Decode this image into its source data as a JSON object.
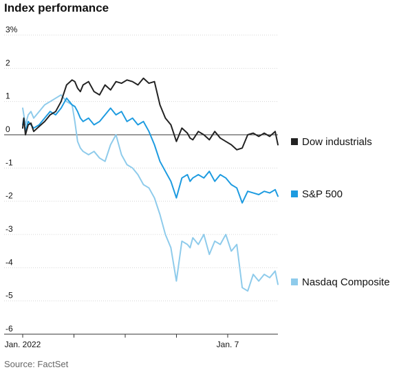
{
  "chart_data": {
    "type": "line",
    "title": "Index performance",
    "source": "Source: FactSet",
    "ylim": [
      -6,
      3
    ],
    "y_ticks": [
      {
        "value": 3,
        "label": "3%"
      },
      {
        "value": 2,
        "label": "2"
      },
      {
        "value": 1,
        "label": "1"
      },
      {
        "value": 0,
        "label": "0"
      },
      {
        "value": -1,
        "label": "-1"
      },
      {
        "value": -2,
        "label": "-2"
      },
      {
        "value": -3,
        "label": "-3"
      },
      {
        "value": -4,
        "label": "-4"
      },
      {
        "value": -5,
        "label": "-5"
      },
      {
        "value": -6,
        "label": "-6"
      }
    ],
    "x_ticks": [
      {
        "value": 0,
        "label": "Jan. 2022"
      },
      {
        "value": 1,
        "label": ""
      },
      {
        "value": 2,
        "label": ""
      },
      {
        "value": 3,
        "label": ""
      },
      {
        "value": 4,
        "label": "Jan. 7"
      }
    ],
    "grid": true,
    "legend": "right",
    "series": [
      {
        "name": "Dow industrials",
        "color": "#222222",
        "x": [
          0,
          0.02,
          0.05,
          0.1,
          0.15,
          0.2,
          0.3,
          0.4,
          0.5,
          0.6,
          0.7,
          0.8,
          0.9,
          0.95,
          1.0,
          1.05,
          1.1,
          1.2,
          1.3,
          1.4,
          1.5,
          1.6,
          1.7,
          1.8,
          1.9,
          2.0,
          2.1,
          2.2,
          2.3,
          2.4,
          2.5,
          2.6,
          2.7,
          2.8,
          2.9,
          3.0,
          3.05,
          3.1,
          3.2,
          3.3,
          3.4,
          3.5,
          3.6,
          3.7,
          3.8,
          3.9,
          4.0,
          4.1,
          4.2,
          4.3,
          4.4,
          4.5,
          4.6,
          4.65
        ],
        "values": [
          0.2,
          0.5,
          0.0,
          0.3,
          0.35,
          0.1,
          0.25,
          0.4,
          0.6,
          0.7,
          1.0,
          1.5,
          1.65,
          1.6,
          1.4,
          1.3,
          1.5,
          1.6,
          1.3,
          1.2,
          1.5,
          1.35,
          1.6,
          1.55,
          1.65,
          1.6,
          1.5,
          1.7,
          1.55,
          1.6,
          0.9,
          0.5,
          0.3,
          -0.2,
          0.2,
          0.05,
          -0.1,
          -0.15,
          0.1,
          0.0,
          -0.15,
          0.1,
          -0.1,
          -0.2,
          -0.3,
          -0.45,
          -0.4,
          0.0,
          0.05,
          -0.05,
          0.05,
          -0.05,
          0.1,
          -0.3
        ]
      },
      {
        "name": "S&P 500",
        "color": "#1d9be0",
        "x": [
          0,
          0.02,
          0.05,
          0.1,
          0.15,
          0.2,
          0.3,
          0.4,
          0.5,
          0.6,
          0.7,
          0.8,
          0.9,
          0.95,
          1.0,
          1.05,
          1.1,
          1.2,
          1.3,
          1.4,
          1.5,
          1.6,
          1.7,
          1.8,
          1.9,
          2.0,
          2.1,
          2.2,
          2.3,
          2.4,
          2.5,
          2.6,
          2.7,
          2.8,
          2.9,
          3.0,
          3.05,
          3.1,
          3.2,
          3.3,
          3.4,
          3.5,
          3.6,
          3.7,
          3.8,
          3.9,
          4.0,
          4.1,
          4.2,
          4.3,
          4.4,
          4.5,
          4.6,
          4.65
        ],
        "values": [
          0.3,
          0.5,
          0.1,
          0.4,
          0.3,
          0.2,
          0.3,
          0.5,
          0.7,
          0.6,
          0.8,
          1.1,
          0.9,
          0.85,
          0.7,
          0.5,
          0.4,
          0.5,
          0.3,
          0.4,
          0.6,
          0.8,
          0.6,
          0.7,
          0.4,
          0.5,
          0.3,
          0.4,
          0.1,
          -0.3,
          -0.8,
          -1.1,
          -1.4,
          -1.9,
          -1.3,
          -1.2,
          -1.4,
          -1.3,
          -1.2,
          -1.3,
          -1.1,
          -1.4,
          -1.2,
          -1.3,
          -1.5,
          -1.6,
          -2.05,
          -1.7,
          -1.75,
          -1.8,
          -1.7,
          -1.75,
          -1.65,
          -1.85
        ]
      },
      {
        "name": "Nasdaq Composite",
        "color": "#8ecbeb",
        "x": [
          0,
          0.02,
          0.05,
          0.1,
          0.15,
          0.2,
          0.3,
          0.4,
          0.5,
          0.6,
          0.7,
          0.8,
          0.9,
          0.95,
          1.0,
          1.05,
          1.1,
          1.2,
          1.3,
          1.4,
          1.5,
          1.6,
          1.7,
          1.8,
          1.9,
          2.0,
          2.1,
          2.2,
          2.3,
          2.4,
          2.5,
          2.6,
          2.7,
          2.8,
          2.9,
          3.0,
          3.05,
          3.1,
          3.2,
          3.3,
          3.4,
          3.5,
          3.6,
          3.7,
          3.8,
          3.9,
          4.0,
          4.1,
          4.2,
          4.3,
          4.4,
          4.5,
          4.6,
          4.65
        ],
        "values": [
          0.8,
          0.6,
          0.3,
          0.6,
          0.7,
          0.5,
          0.7,
          0.9,
          1.0,
          1.1,
          1.2,
          1.0,
          0.9,
          0.4,
          -0.2,
          -0.4,
          -0.5,
          -0.6,
          -0.5,
          -0.7,
          -0.8,
          -0.3,
          0.0,
          -0.6,
          -0.9,
          -1.0,
          -1.2,
          -1.5,
          -1.6,
          -1.9,
          -2.4,
          -3.0,
          -3.4,
          -4.4,
          -3.2,
          -3.3,
          -3.4,
          -3.1,
          -3.3,
          -3.0,
          -3.6,
          -3.2,
          -3.3,
          -3.0,
          -3.5,
          -3.3,
          -4.6,
          -4.7,
          -4.2,
          -4.4,
          -4.2,
          -4.3,
          -4.1,
          -4.5
        ]
      }
    ]
  }
}
